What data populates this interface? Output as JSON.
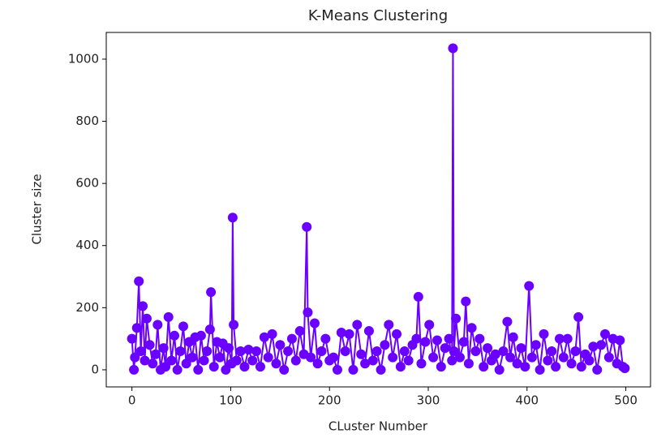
{
  "chart_data": {
    "type": "line",
    "title": "K-Means Clustering",
    "x_label": "CLuster Number",
    "y_label": "Cluster size",
    "color": "#6a00ff",
    "markers": true,
    "x": [
      0,
      2,
      3,
      5,
      7,
      9,
      11,
      13,
      15,
      18,
      21,
      24,
      26,
      29,
      32,
      34,
      37,
      40,
      43,
      46,
      49,
      52,
      55,
      58,
      61,
      64,
      67,
      70,
      73,
      76,
      79,
      80,
      83,
      86,
      89,
      92,
      95,
      98,
      101,
      102,
      103,
      106,
      110,
      114,
      118,
      122,
      126,
      130,
      134,
      138,
      142,
      146,
      150,
      154,
      158,
      162,
      166,
      170,
      174,
      177,
      178,
      181,
      185,
      188,
      192,
      196,
      200,
      204,
      208,
      212,
      216,
      220,
      224,
      228,
      232,
      236,
      240,
      244,
      248,
      252,
      256,
      260,
      264,
      268,
      272,
      276,
      280,
      284,
      288,
      290,
      293,
      297,
      301,
      305,
      309,
      313,
      317,
      321,
      324,
      325,
      326,
      328,
      332,
      336,
      338,
      341,
      344,
      348,
      352,
      356,
      360,
      364,
      368,
      372,
      376,
      380,
      383,
      386,
      390,
      394,
      398,
      402,
      405,
      409,
      413,
      417,
      421,
      425,
      429,
      433,
      437,
      441,
      445,
      449,
      452,
      455,
      459,
      463,
      467,
      471,
      475,
      479,
      483,
      487,
      491,
      494,
      497,
      499
    ],
    "values": [
      100,
      0,
      40,
      135,
      285,
      60,
      205,
      30,
      165,
      80,
      20,
      50,
      145,
      0,
      70,
      10,
      170,
      30,
      110,
      0,
      60,
      140,
      20,
      90,
      40,
      105,
      0,
      110,
      30,
      60,
      130,
      250,
      10,
      90,
      40,
      85,
      0,
      70,
      20,
      490,
      145,
      30,
      60,
      10,
      65,
      30,
      60,
      10,
      105,
      40,
      115,
      20,
      80,
      0,
      60,
      100,
      30,
      125,
      50,
      460,
      185,
      40,
      150,
      20,
      60,
      100,
      30,
      40,
      0,
      120,
      60,
      115,
      0,
      145,
      50,
      20,
      125,
      30,
      60,
      0,
      80,
      145,
      40,
      115,
      10,
      60,
      30,
      80,
      100,
      235,
      20,
      90,
      145,
      40,
      95,
      10,
      70,
      100,
      30,
      1035,
      60,
      165,
      40,
      90,
      220,
      20,
      135,
      60,
      100,
      10,
      70,
      30,
      50,
      0,
      60,
      155,
      40,
      105,
      20,
      70,
      10,
      270,
      40,
      80,
      0,
      115,
      30,
      60,
      10,
      100,
      40,
      100,
      20,
      60,
      170,
      10,
      50,
      30,
      75,
      0,
      80,
      115,
      40,
      100,
      20,
      95,
      10,
      5
    ],
    "xlim": [
      -26,
      525
    ],
    "ylim": [
      -55,
      1086
    ],
    "xticks": [
      0,
      100,
      200,
      300,
      400,
      500
    ],
    "yticks": [
      0,
      200,
      400,
      600,
      800,
      1000
    ]
  }
}
